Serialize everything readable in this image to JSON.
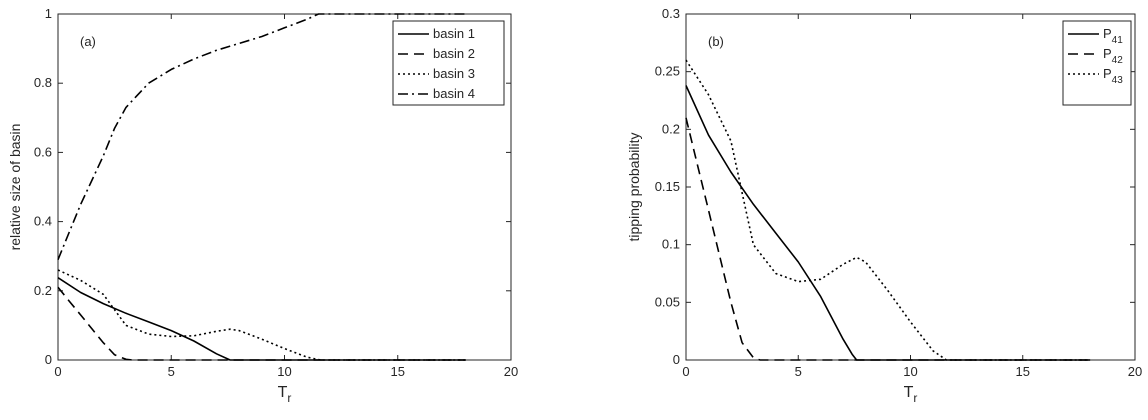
{
  "chart_data": [
    {
      "type": "line",
      "panel_label": "(a)",
      "xlabel": "T",
      "xlabel_sub": "r",
      "ylabel": "relative size of basin",
      "xlim": [
        0,
        20
      ],
      "ylim": [
        0,
        1
      ],
      "xticks": [
        0,
        5,
        10,
        15,
        20
      ],
      "yticks": [
        0,
        0.2,
        0.4,
        0.6,
        0.8,
        1
      ],
      "ytick_labels": [
        "0",
        "0.2",
        "0.4",
        "0.6",
        "0.8",
        "1"
      ],
      "grid": false,
      "legend_position": "top-right",
      "series": [
        {
          "name": "basin 1",
          "style": "solid",
          "x": [
            0,
            1,
            2,
            3,
            4,
            5,
            6,
            7,
            7.6,
            8,
            10,
            12,
            15,
            18
          ],
          "y": [
            0.238,
            0.195,
            0.163,
            0.135,
            0.11,
            0.085,
            0.055,
            0.018,
            0,
            0,
            0,
            0,
            0,
            0
          ]
        },
        {
          "name": "basin 2",
          "style": "dashed",
          "x": [
            0,
            0.5,
            1,
            1.5,
            2,
            2.5,
            3,
            3.3,
            4,
            6,
            10,
            14,
            18
          ],
          "y": [
            0.21,
            0.17,
            0.13,
            0.09,
            0.05,
            0.015,
            0.002,
            0,
            0,
            0,
            0,
            0,
            0
          ]
        },
        {
          "name": "basin 3",
          "style": "dotted",
          "x": [
            0,
            1,
            2,
            2.5,
            3,
            4,
            5,
            6,
            7,
            7.6,
            8,
            9,
            10,
            11,
            11.6,
            12,
            15,
            18
          ],
          "y": [
            0.26,
            0.23,
            0.19,
            0.145,
            0.1,
            0.075,
            0.068,
            0.07,
            0.083,
            0.089,
            0.085,
            0.06,
            0.033,
            0.008,
            0,
            0,
            0,
            0
          ]
        },
        {
          "name": "basin 4",
          "style": "dashdot",
          "x": [
            0,
            0.5,
            1,
            1.5,
            2,
            2.5,
            3,
            4,
            5,
            6,
            7,
            8,
            9,
            10,
            11,
            11.5,
            12,
            14,
            16,
            18
          ],
          "y": [
            0.29,
            0.37,
            0.45,
            0.52,
            0.59,
            0.67,
            0.73,
            0.8,
            0.84,
            0.87,
            0.895,
            0.915,
            0.935,
            0.96,
            0.985,
            1,
            1,
            1,
            1,
            1
          ]
        }
      ]
    },
    {
      "type": "line",
      "panel_label": "(b)",
      "xlabel": "T",
      "xlabel_sub": "r",
      "ylabel": "tipping probability",
      "xlim": [
        0,
        20
      ],
      "ylim": [
        0,
        0.3
      ],
      "xticks": [
        0,
        5,
        10,
        15,
        20
      ],
      "yticks": [
        0,
        0.05,
        0.1,
        0.15,
        0.2,
        0.25,
        0.3
      ],
      "ytick_labels": [
        "0",
        "0.05",
        "0.1",
        "0.15",
        "0.2",
        "0.25",
        "0.3"
      ],
      "grid": false,
      "legend_position": "top-right",
      "series": [
        {
          "name": "P",
          "name_sub": "41",
          "style": "solid",
          "x": [
            0,
            1,
            2,
            3,
            4,
            5,
            6,
            7,
            7.4,
            7.6,
            8,
            10,
            12,
            15,
            18
          ],
          "y": [
            0.238,
            0.195,
            0.163,
            0.135,
            0.11,
            0.085,
            0.055,
            0.018,
            0.005,
            0,
            0,
            0,
            0,
            0,
            0
          ]
        },
        {
          "name": "P",
          "name_sub": "42",
          "style": "dashed",
          "x": [
            0,
            0.5,
            1,
            1.5,
            2,
            2.5,
            3,
            3.3,
            4,
            6,
            10,
            14,
            18
          ],
          "y": [
            0.21,
            0.17,
            0.13,
            0.09,
            0.05,
            0.015,
            0.002,
            0,
            0,
            0,
            0,
            0,
            0
          ]
        },
        {
          "name": "P",
          "name_sub": "43",
          "style": "dotted",
          "x": [
            0,
            1,
            2,
            2.5,
            3,
            4,
            5,
            6,
            7,
            7.6,
            8,
            9,
            10,
            11,
            11.6,
            12,
            15,
            18
          ],
          "y": [
            0.26,
            0.23,
            0.19,
            0.145,
            0.1,
            0.075,
            0.068,
            0.07,
            0.083,
            0.089,
            0.085,
            0.06,
            0.033,
            0.008,
            0,
            0,
            0,
            0
          ]
        }
      ]
    }
  ]
}
